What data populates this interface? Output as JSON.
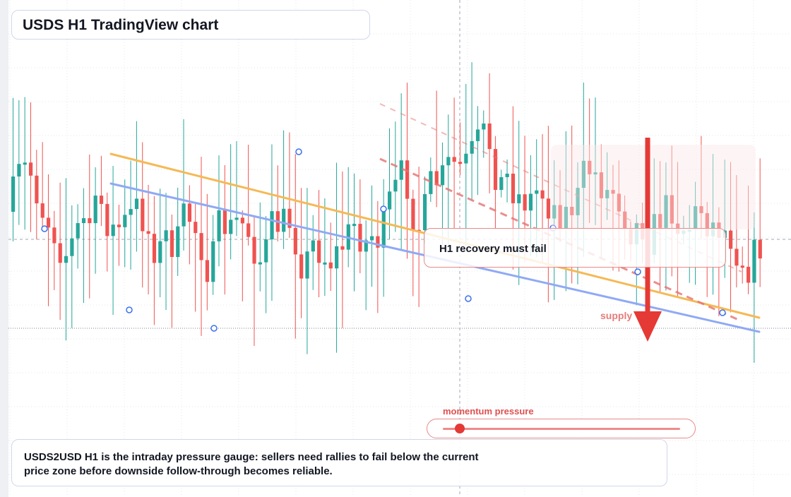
{
  "colors": {
    "bull": "#26a69a",
    "bear": "#ef5350",
    "support_line": "#8fa9f5",
    "resistance_line": "#f5b955",
    "downtrend_line": "#e57373",
    "supply_arrow": "#e53935",
    "grid": "#e3e7ee"
  },
  "header": {
    "title": "USDS H1 TradingView chart"
  },
  "annotations": {
    "callout": "H1 recovery must fail",
    "supply_label": "supply",
    "gauge_label": "momentum pressure"
  },
  "gauge": {
    "value": 0.07
  },
  "caption": {
    "line1": "USDS2USD H1 is the intraday pressure gauge: sellers need rallies to fail below the current",
    "line2": "price zone before downside follow-through becomes reliable."
  },
  "icons": {
    "supply": "down-arrow-icon",
    "marker": "circle-marker-icon"
  },
  "chart_data": {
    "type": "candlestick",
    "timeframe": "H1",
    "grid": true,
    "candle_count": 128
  }
}
